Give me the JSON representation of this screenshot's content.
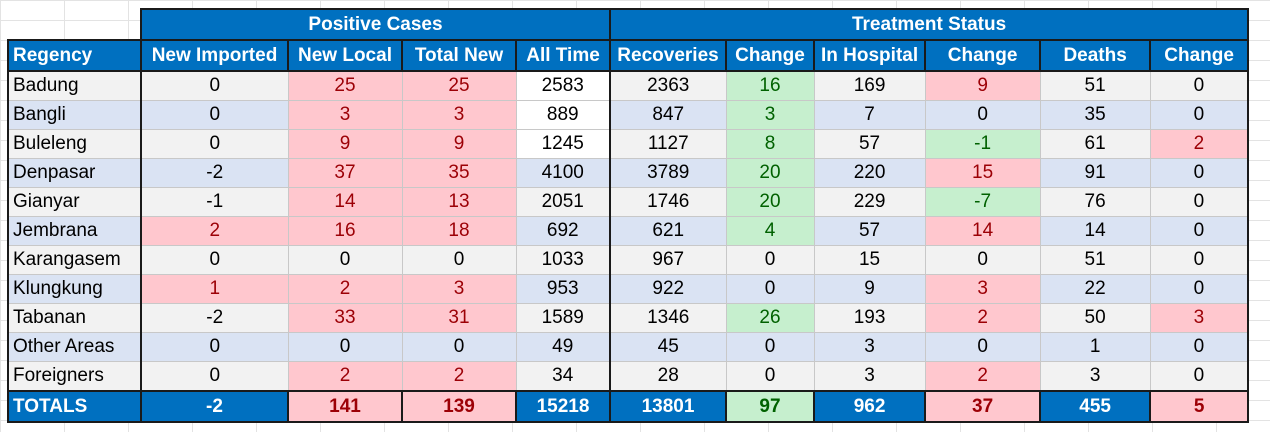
{
  "groups": {
    "positive": "Positive Cases",
    "treatment": "Treatment Status"
  },
  "columns": [
    "Regency",
    "New Imported",
    "New Local",
    "Total New",
    "All Time",
    "Recoveries",
    "Change",
    "In Hospital",
    "Change",
    "Deaths",
    "Change"
  ],
  "rows": [
    {
      "cells": [
        "Badung",
        "0",
        "25",
        "25",
        "2583",
        "2363",
        "16",
        "169",
        "9",
        "51",
        "0"
      ]
    },
    {
      "cells": [
        "Bangli",
        "0",
        "3",
        "3",
        "889",
        "847",
        "3",
        "7",
        "0",
        "35",
        "0"
      ]
    },
    {
      "cells": [
        "Buleleng",
        "0",
        "9",
        "9",
        "1245",
        "1127",
        "8",
        "57",
        "-1",
        "61",
        "2"
      ]
    },
    {
      "cells": [
        "Denpasar",
        "-2",
        "37",
        "35",
        "4100",
        "3789",
        "20",
        "220",
        "15",
        "91",
        "0"
      ]
    },
    {
      "cells": [
        "Gianyar",
        "-1",
        "14",
        "13",
        "2051",
        "1746",
        "20",
        "229",
        "-7",
        "76",
        "0"
      ]
    },
    {
      "cells": [
        "Jembrana",
        "2",
        "16",
        "18",
        "692",
        "621",
        "4",
        "57",
        "14",
        "14",
        "0"
      ]
    },
    {
      "cells": [
        "Karangasem",
        "0",
        "0",
        "0",
        "1033",
        "967",
        "0",
        "15",
        "0",
        "51",
        "0"
      ]
    },
    {
      "cells": [
        "Klungkung",
        "1",
        "2",
        "3",
        "953",
        "922",
        "0",
        "9",
        "3",
        "22",
        "0"
      ]
    },
    {
      "cells": [
        "Tabanan",
        "-2",
        "33",
        "31",
        "1589",
        "1346",
        "26",
        "193",
        "2",
        "50",
        "3"
      ]
    },
    {
      "cells": [
        "Other Areas",
        "0",
        "0",
        "0",
        "49",
        "45",
        "0",
        "3",
        "0",
        "1",
        "0"
      ]
    },
    {
      "cells": [
        "Foreigners",
        "0",
        "2",
        "2",
        "34",
        "28",
        "0",
        "3",
        "2",
        "3",
        "0"
      ]
    }
  ],
  "totals": [
    "TOTALS",
    "-2",
    "141",
    "139",
    "15218",
    "13801",
    "97",
    "962",
    "37",
    "455",
    "5"
  ],
  "colors": {
    "header_blue": "#0070c0",
    "negative_fill": "#ffc7ce",
    "negative_text": "#9c0006",
    "positive_fill": "#c6efce",
    "positive_text": "#006100",
    "row_alt_grey": "#f2f2f2",
    "row_alt_blue": "#dae3f3"
  }
}
